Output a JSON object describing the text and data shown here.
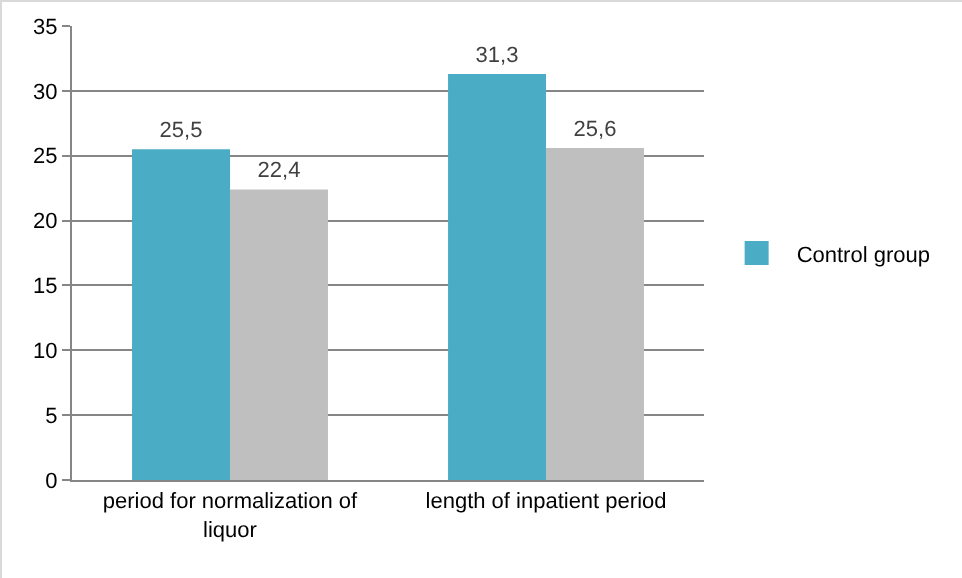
{
  "chart_data": {
    "type": "bar",
    "categories": [
      "period for normalization of liquor",
      "length of inpatient period"
    ],
    "series": [
      {
        "name": "Control group",
        "color": "#4bacc6",
        "values": [
          25.5,
          31.3
        ],
        "value_labels": [
          "25,5",
          "31,3"
        ]
      },
      {
        "color": "#bfbfbf",
        "values": [
          22.4,
          25.6
        ],
        "value_labels": [
          "22,4",
          "25,6"
        ]
      }
    ],
    "ylim": [
      0,
      35
    ],
    "yticks": [
      0,
      5,
      10,
      15,
      20,
      25,
      30,
      35
    ],
    "grid": "y",
    "legend": "right"
  }
}
